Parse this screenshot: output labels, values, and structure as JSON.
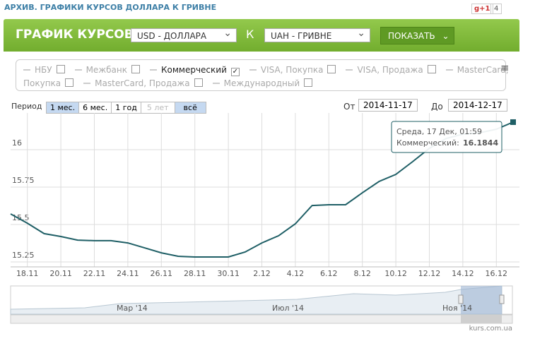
{
  "page": {
    "heading": "АРХИВ. ГРАФИКИ КУРСОВ ДОЛЛАРА К ГРИВНЕ",
    "gplus": "g+1",
    "gplus_count": "4",
    "bar_title": "ГРАФИК КУРСОВ",
    "from_currency": "USD - ДОЛЛАРА",
    "to_word": "К",
    "to_currency": "UAH - ГРИВНЕ",
    "show_button": "ПОКАЗАТЬ",
    "checkboxes": [
      {
        "label": "НБУ",
        "checked": false
      },
      {
        "label": "Межбанк",
        "checked": false
      },
      {
        "label": "Коммерческий",
        "checked": true
      },
      {
        "label": "VISA, Покупка",
        "checked": false
      },
      {
        "label": "VISA, Продажа",
        "checked": false
      },
      {
        "label": "MasterCard, Покупка",
        "checked": false
      },
      {
        "label": "MasterCard, Продажа",
        "checked": false
      },
      {
        "label": "Международный",
        "checked": false
      }
    ],
    "period_label": "Период",
    "periods": [
      "1 мес.",
      "6 мес.",
      "1 год",
      "5 лет",
      "всё"
    ],
    "from_label": "От",
    "from_date": "2014-11-17",
    "to_label": "До",
    "to_date": "2014-12-17",
    "navigator_labels": [
      "Мар '14",
      "Июл '14",
      "Ноя '14"
    ],
    "credit": "kurs.com.ua"
  },
  "chart_data": {
    "type": "line",
    "categories": [
      null,
      "18.11",
      null,
      "20.11",
      null,
      "22.11",
      null,
      "24.11",
      null,
      "26.11",
      null,
      "28.11",
      null,
      "30.11",
      null,
      "2.12",
      null,
      "4.12",
      null,
      "6.12",
      null,
      "8.12",
      null,
      "10.12",
      null,
      "12.12",
      null,
      "14.12",
      null,
      "16.12",
      null
    ],
    "series": [
      {
        "name": "Коммерческий",
        "color": "#1f5f66",
        "values": [
          15.571,
          15.509,
          15.439,
          15.42,
          15.396,
          15.392,
          15.392,
          15.377,
          15.344,
          15.311,
          15.288,
          15.283,
          15.283,
          15.283,
          15.316,
          15.377,
          15.425,
          15.505,
          15.627,
          15.632,
          15.632,
          15.712,
          15.788,
          15.835,
          15.92,
          16.009,
          16.075,
          16.104,
          16.113,
          16.137,
          16.1844
        ]
      }
    ],
    "ylim": [
      15.217,
      16.222
    ],
    "yticks": [
      15.25,
      15.75,
      16,
      {
        "value": 15.5,
        "label": "15.5"
      }
    ],
    "grid": true,
    "tooltip": {
      "header": "Среда, 17 Дек, 01:59",
      "label": "Коммерческий:"
    }
  }
}
